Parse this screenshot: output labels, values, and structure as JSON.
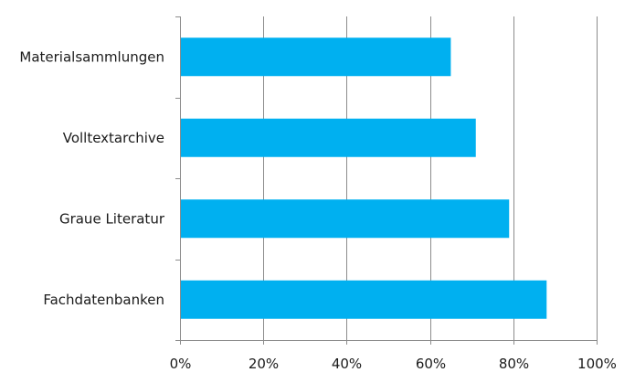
{
  "chart_data": {
    "type": "bar",
    "orientation": "horizontal",
    "categories": [
      "Materialsammlungen",
      "Volltextarchive",
      "Graue Literatur",
      "Fachdatenbanken"
    ],
    "values": [
      0.65,
      0.71,
      0.79,
      0.88
    ],
    "xlim": [
      0,
      1
    ],
    "xticks": [
      0,
      0.2,
      0.4,
      0.6,
      0.8,
      1.0
    ],
    "xtick_labels": [
      "0%",
      "20%",
      "40%",
      "60%",
      "80%",
      "100%"
    ],
    "title": "",
    "xlabel": "",
    "ylabel": "",
    "grid": "vertical",
    "legend": "none",
    "bar_color": "#00b0f0"
  }
}
